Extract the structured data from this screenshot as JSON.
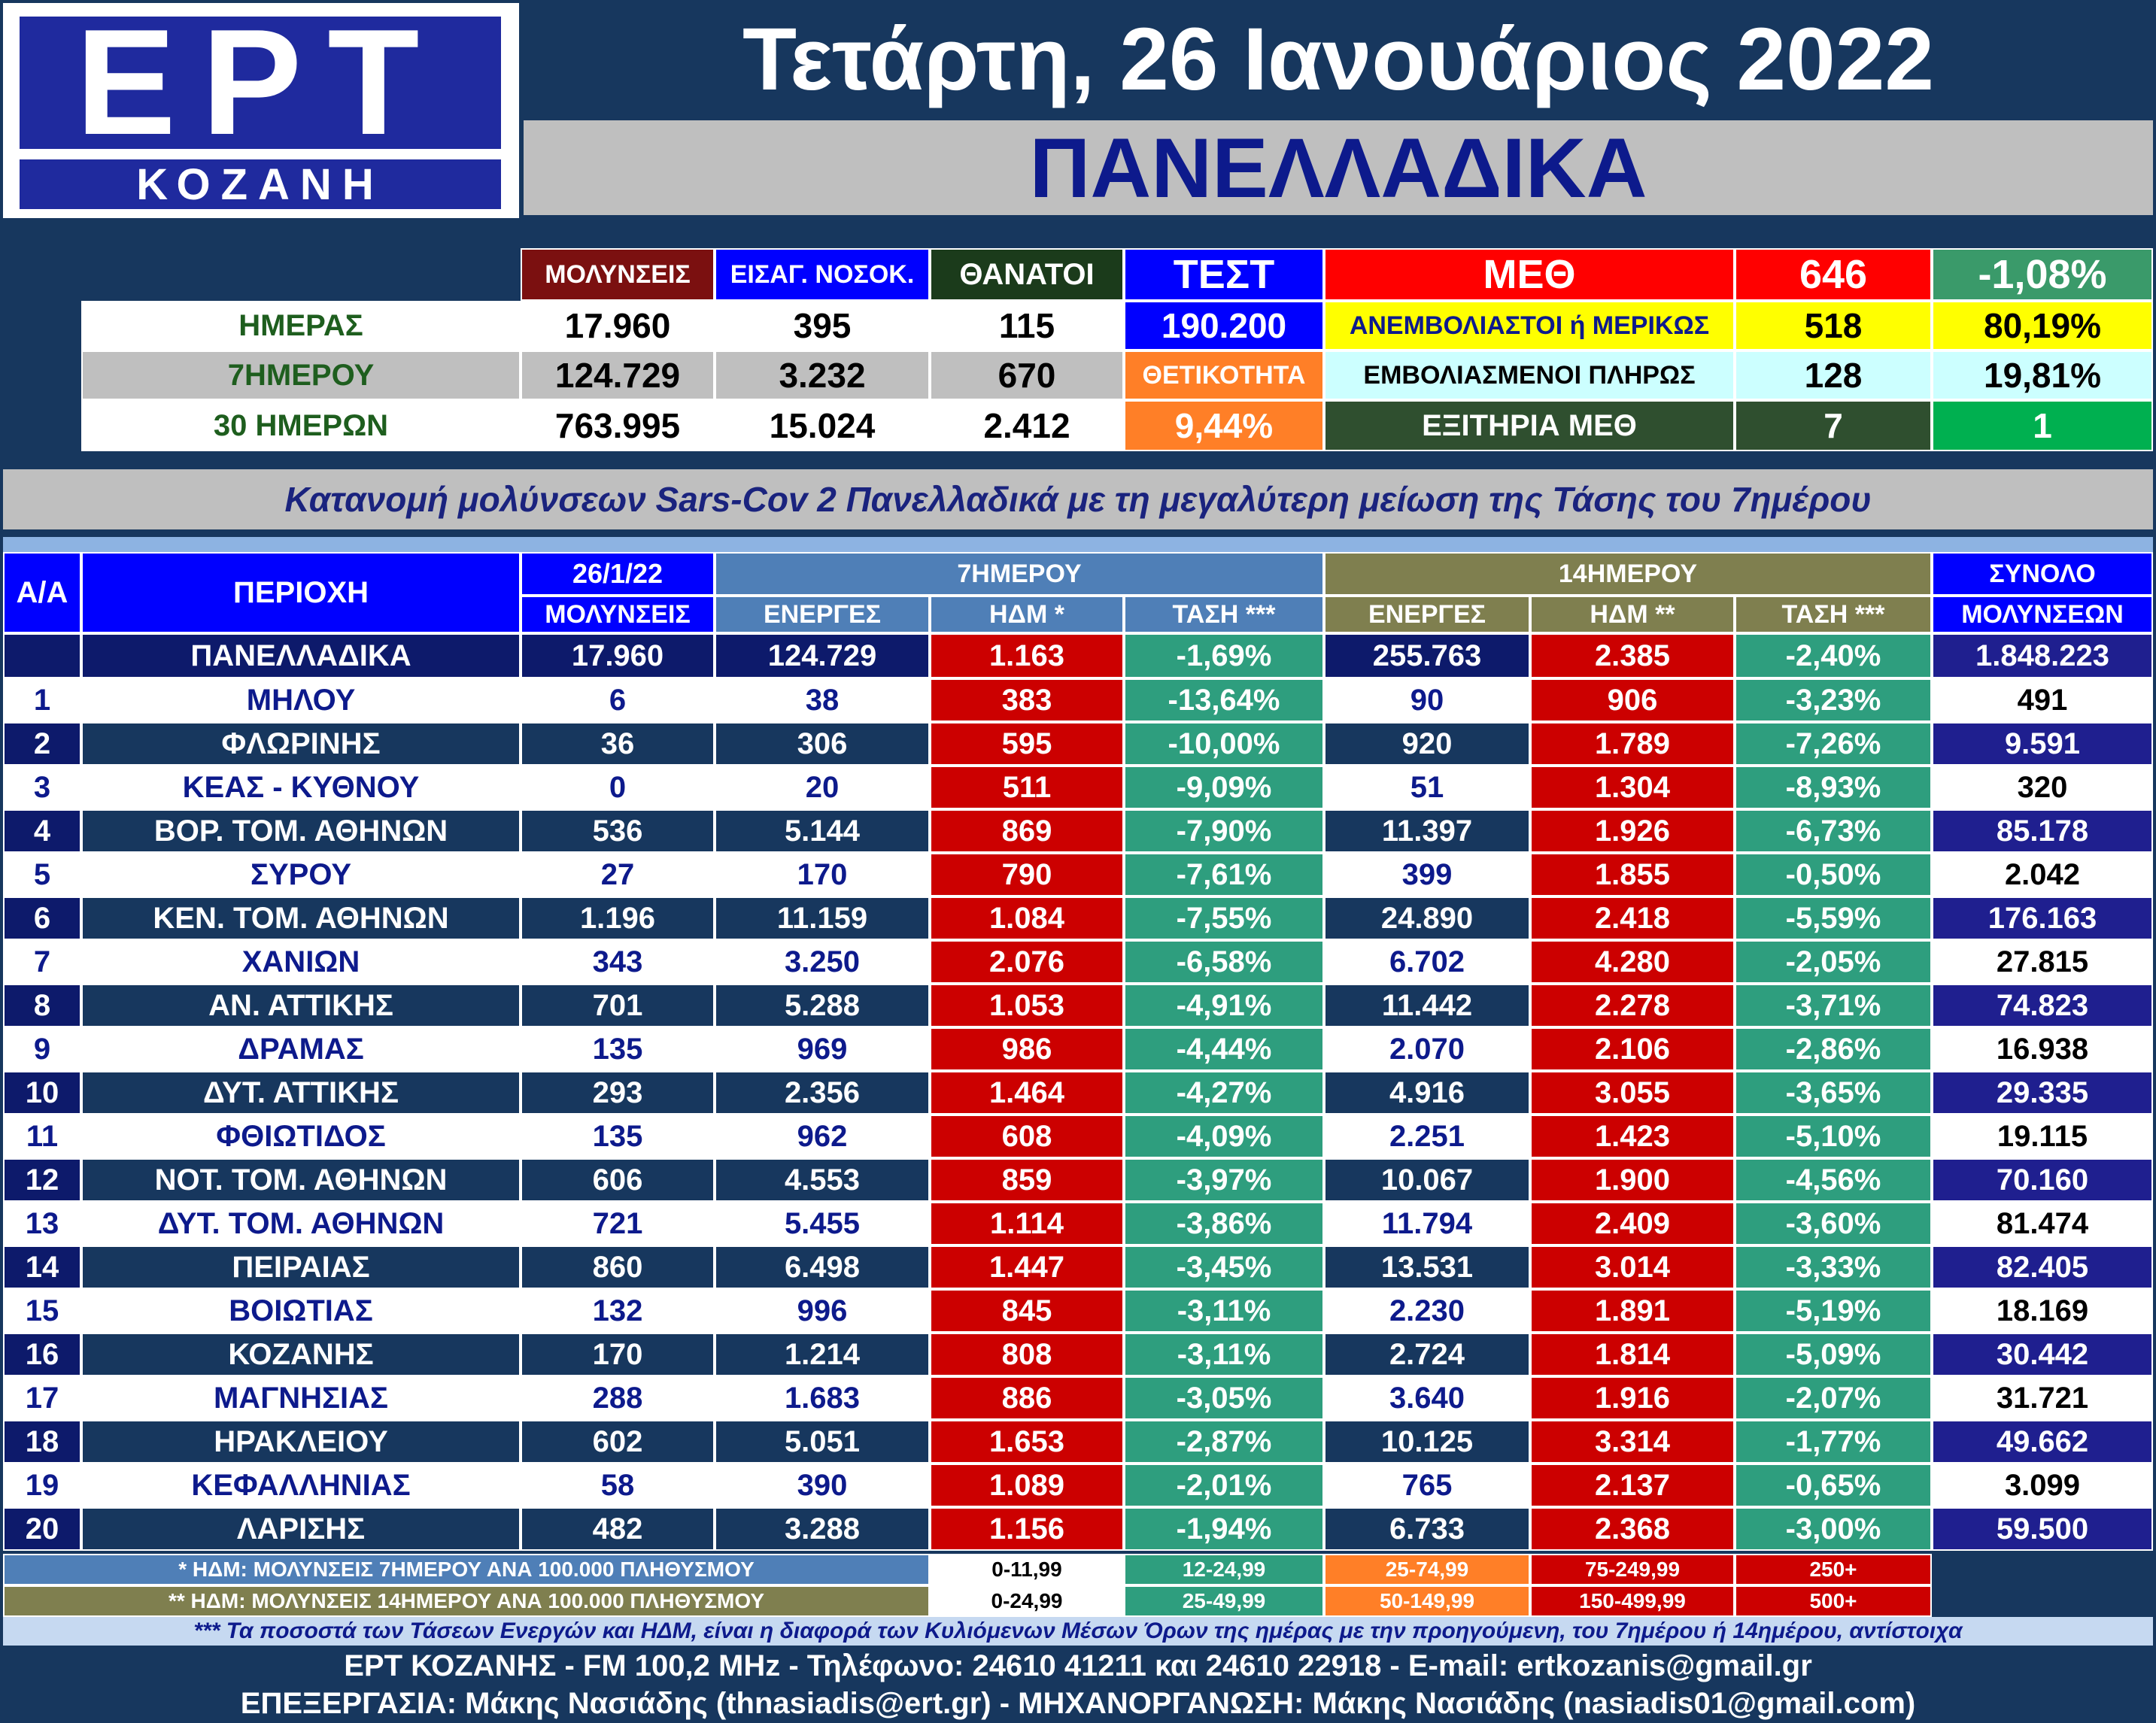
{
  "logo": {
    "brand": "ΕΡΤ",
    "city": "ΚΟΖΑΝΗ"
  },
  "header": {
    "date": "Τετάρτη, 26 Ιανουάριος 2022",
    "scope": "ΠΑΝΕΛΛΑΔΙΚΑ"
  },
  "summary": {
    "col_headers": [
      "ΜΟΛΥΝΣΕΙΣ",
      "ΕΙΣΑΓ. ΝΟΣΟΚ.",
      "ΘΑΝΑΤΟΙ"
    ],
    "rows": [
      {
        "label": "ΗΜΕΡΑΣ",
        "values": [
          "17.960",
          "395",
          "115"
        ]
      },
      {
        "label": "7ΗΜΕΡΟΥ",
        "values": [
          "124.729",
          "3.232",
          "670"
        ]
      },
      {
        "label": "30 ΗΜΕΡΩΝ",
        "values": [
          "763.995",
          "15.024",
          "2.412"
        ]
      }
    ],
    "test_label": "ΤΕΣΤ",
    "test_value": "190.200",
    "positivity_label": "ΘΕΤΙΚΟΤΗΤΑ",
    "positivity_value": "9,44%",
    "icu": {
      "label": "ΜΕΘ",
      "count": "646",
      "change": "-1,08%",
      "unvaccinated_label": "ΑΝΕΜΒΟΛΙΑΣΤΟΙ ή ΜΕΡΙΚΩΣ",
      "unvaccinated_count": "518",
      "unvaccinated_pct": "80,19%",
      "vaccinated_label": "ΕΜΒΟΛΙΑΣΜΕΝΟΙ ΠΛΗΡΩΣ",
      "vaccinated_count": "128",
      "vaccinated_pct": "19,81%",
      "discharged_label": "ΕΞΙΤΗΡΙΑ ΜΕΘ",
      "discharged_count": "7",
      "discharged_extra": "1"
    }
  },
  "table": {
    "title": "Κατανομή μολύνσεων Sars-Cov 2 Πανελλαδικά με τη μεγαλύτερη μείωση της Τάσης του 7ημέρου",
    "headers": {
      "aa": "Α/Α",
      "region": "ΠΕΡΙΟΧΗ",
      "date": "26/1/22",
      "infections": "ΜΟΛΥΝΣΕΙΣ",
      "group7": "7ΗΜΕΡΟΥ",
      "group14": "14ΗΜΕΡΟΥ",
      "active": "ΕΝΕΡΓΕΣ",
      "hdm7": "ΗΔΜ *",
      "trend7": "ΤΑΣΗ ***",
      "active14": "ΕΝΕΡΓΕΣ",
      "hdm14": "ΗΔΜ **",
      "trend14": "ΤΑΣΗ ***",
      "total1": "ΣΥΝΟΛΟ",
      "total2": "ΜΟΛΥΝΣΕΩΝ"
    },
    "national": {
      "name": "ΠΑΝΕΛΛΑΔΙΚΑ",
      "today": "17.960",
      "active7": "124.729",
      "hdm7": "1.163",
      "trend7": "-1,69%",
      "active14": "255.763",
      "hdm14": "2.385",
      "trend14": "-2,40%",
      "total": "1.848.223"
    },
    "rows": [
      {
        "aa": "1",
        "name": "ΜΗΛΟΥ",
        "today": "6",
        "active7": "38",
        "hdm7": "383",
        "trend7": "-13,64%",
        "active14": "90",
        "hdm14": "906",
        "trend14": "-3,23%",
        "total": "491"
      },
      {
        "aa": "2",
        "name": "ΦΛΩΡΙΝΗΣ",
        "today": "36",
        "active7": "306",
        "hdm7": "595",
        "trend7": "-10,00%",
        "active14": "920",
        "hdm14": "1.789",
        "trend14": "-7,26%",
        "total": "9.591"
      },
      {
        "aa": "3",
        "name": "ΚΕΑΣ - ΚΥΘΝΟΥ",
        "today": "0",
        "active7": "20",
        "hdm7": "511",
        "trend7": "-9,09%",
        "active14": "51",
        "hdm14": "1.304",
        "trend14": "-8,93%",
        "total": "320"
      },
      {
        "aa": "4",
        "name": "ΒΟΡ. ΤΟΜ. ΑΘΗΝΩΝ",
        "today": "536",
        "active7": "5.144",
        "hdm7": "869",
        "trend7": "-7,90%",
        "active14": "11.397",
        "hdm14": "1.926",
        "trend14": "-6,73%",
        "total": "85.178"
      },
      {
        "aa": "5",
        "name": "ΣΥΡΟΥ",
        "today": "27",
        "active7": "170",
        "hdm7": "790",
        "trend7": "-7,61%",
        "active14": "399",
        "hdm14": "1.855",
        "trend14": "-0,50%",
        "total": "2.042"
      },
      {
        "aa": "6",
        "name": "ΚΕΝ. ΤΟΜ. ΑΘΗΝΩΝ",
        "today": "1.196",
        "active7": "11.159",
        "hdm7": "1.084",
        "trend7": "-7,55%",
        "active14": "24.890",
        "hdm14": "2.418",
        "trend14": "-5,59%",
        "total": "176.163"
      },
      {
        "aa": "7",
        "name": "ΧΑΝΙΩΝ",
        "today": "343",
        "active7": "3.250",
        "hdm7": "2.076",
        "trend7": "-6,58%",
        "active14": "6.702",
        "hdm14": "4.280",
        "trend14": "-2,05%",
        "total": "27.815"
      },
      {
        "aa": "8",
        "name": "ΑΝ. ΑΤΤΙΚΗΣ",
        "today": "701",
        "active7": "5.288",
        "hdm7": "1.053",
        "trend7": "-4,91%",
        "active14": "11.442",
        "hdm14": "2.278",
        "trend14": "-3,71%",
        "total": "74.823"
      },
      {
        "aa": "9",
        "name": "ΔΡΑΜΑΣ",
        "today": "135",
        "active7": "969",
        "hdm7": "986",
        "trend7": "-4,44%",
        "active14": "2.070",
        "hdm14": "2.106",
        "trend14": "-2,86%",
        "total": "16.938"
      },
      {
        "aa": "10",
        "name": "ΔΥΤ. ΑΤΤΙΚΗΣ",
        "today": "293",
        "active7": "2.356",
        "hdm7": "1.464",
        "trend7": "-4,27%",
        "active14": "4.916",
        "hdm14": "3.055",
        "trend14": "-3,65%",
        "total": "29.335"
      },
      {
        "aa": "11",
        "name": "ΦΘΙΩΤΙΔΟΣ",
        "today": "135",
        "active7": "962",
        "hdm7": "608",
        "trend7": "-4,09%",
        "active14": "2.251",
        "hdm14": "1.423",
        "trend14": "-5,10%",
        "total": "19.115"
      },
      {
        "aa": "12",
        "name": "ΝΟΤ. ΤΟΜ. ΑΘΗΝΩΝ",
        "today": "606",
        "active7": "4.553",
        "hdm7": "859",
        "trend7": "-3,97%",
        "active14": "10.067",
        "hdm14": "1.900",
        "trend14": "-4,56%",
        "total": "70.160"
      },
      {
        "aa": "13",
        "name": "ΔΥΤ. ΤΟΜ. ΑΘΗΝΩΝ",
        "today": "721",
        "active7": "5.455",
        "hdm7": "1.114",
        "trend7": "-3,86%",
        "active14": "11.794",
        "hdm14": "2.409",
        "trend14": "-3,60%",
        "total": "81.474"
      },
      {
        "aa": "14",
        "name": "ΠΕΙΡΑΙΑΣ",
        "today": "860",
        "active7": "6.498",
        "hdm7": "1.447",
        "trend7": "-3,45%",
        "active14": "13.531",
        "hdm14": "3.014",
        "trend14": "-3,33%",
        "total": "82.405"
      },
      {
        "aa": "15",
        "name": "ΒΟΙΩΤΙΑΣ",
        "today": "132",
        "active7": "996",
        "hdm7": "845",
        "trend7": "-3,11%",
        "active14": "2.230",
        "hdm14": "1.891",
        "trend14": "-5,19%",
        "total": "18.169"
      },
      {
        "aa": "16",
        "name": "ΚΟΖΑΝΗΣ",
        "today": "170",
        "active7": "1.214",
        "hdm7": "808",
        "trend7": "-3,11%",
        "active14": "2.724",
        "hdm14": "1.814",
        "trend14": "-5,09%",
        "total": "30.442"
      },
      {
        "aa": "17",
        "name": "ΜΑΓΝΗΣΙΑΣ",
        "today": "288",
        "active7": "1.683",
        "hdm7": "886",
        "trend7": "-3,05%",
        "active14": "3.640",
        "hdm14": "1.916",
        "trend14": "-2,07%",
        "total": "31.721"
      },
      {
        "aa": "18",
        "name": "ΗΡΑΚΛΕΙΟΥ",
        "today": "602",
        "active7": "5.051",
        "hdm7": "1.653",
        "trend7": "-2,87%",
        "active14": "10.125",
        "hdm14": "3.314",
        "trend14": "-1,77%",
        "total": "49.662"
      },
      {
        "aa": "19",
        "name": "ΚΕΦΑΛΛΗΝΙΑΣ",
        "today": "58",
        "active7": "390",
        "hdm7": "1.089",
        "trend7": "-2,01%",
        "active14": "765",
        "hdm14": "2.137",
        "trend14": "-0,65%",
        "total": "3.099"
      },
      {
        "aa": "20",
        "name": "ΛΑΡΙΣΗΣ",
        "today": "482",
        "active7": "3.288",
        "hdm7": "1.156",
        "trend7": "-1,94%",
        "active14": "6.733",
        "hdm14": "2.368",
        "trend14": "-3,00%",
        "total": "59.500"
      }
    ]
  },
  "legend": {
    "hdm7_label": "* ΗΔΜ: ΜΟΛΥΝΣΕΙΣ 7ΗΜΕΡΟΥ ΑΝΑ 100.000 ΠΛΗΘΥΣΜΟΥ",
    "hdm7_ranges": [
      "0-11,99",
      "12-24,99",
      "25-74,99",
      "75-249,99",
      "250+"
    ],
    "hdm14_label": "** ΗΔΜ: ΜΟΛΥΝΣΕΙΣ 14ΗΜΕΡΟΥ ΑΝΑ 100.000 ΠΛΗΘΥΣΜΟΥ",
    "hdm14_ranges": [
      "0-24,99",
      "25-49,99",
      "50-149,99",
      "150-499,99",
      "500+"
    ],
    "range_colors": [
      "#ffffff",
      "#2e9e7e",
      "#ff7f27",
      "#cc0000",
      "#cc0000"
    ]
  },
  "footnote": "*** Τα ποσοστά των Τάσεων Ενεργών και ΗΔΜ, είναι η διαφορά των Κυλιόμενων Μέσων Όρων της ημέρας με την προηγούμενη, του 7ημέρου ή 14ημέρου, αντίστοιχα",
  "footer": {
    "line1": "ΕΡΤ ΚΟΖΑΝΗΣ - FM 100,2 MHz - Τηλέφωνο:  24610 41211 και 24610 22918 - E-mail: ertkozanis@gmail.gr",
    "line2": "ΕΠΕΞΕΡΓΑΣΙΑ: Μάκης Νασιάδης (thnasiadis@ert.gr) - ΜΗΧΑΝΟΡΓΑΝΩΣΗ: Μάκης Νασιάδης (nasiadis01@gmail.com)"
  },
  "colors": {
    "background": "#17375e",
    "header_blue": "#0000ff",
    "red_cell": "#cc0000",
    "teal_cell": "#2e9e7e",
    "dark_navy": "#0d1a6b",
    "olive": "#7f7f4f",
    "steel": "#4f7fb7",
    "yellow": "#ffff00",
    "light_cyan": "#ccffff",
    "dark_green": "#2f4f2f",
    "green": "#00b050",
    "orange": "#ff7f27",
    "maroon": "#7b1010"
  }
}
